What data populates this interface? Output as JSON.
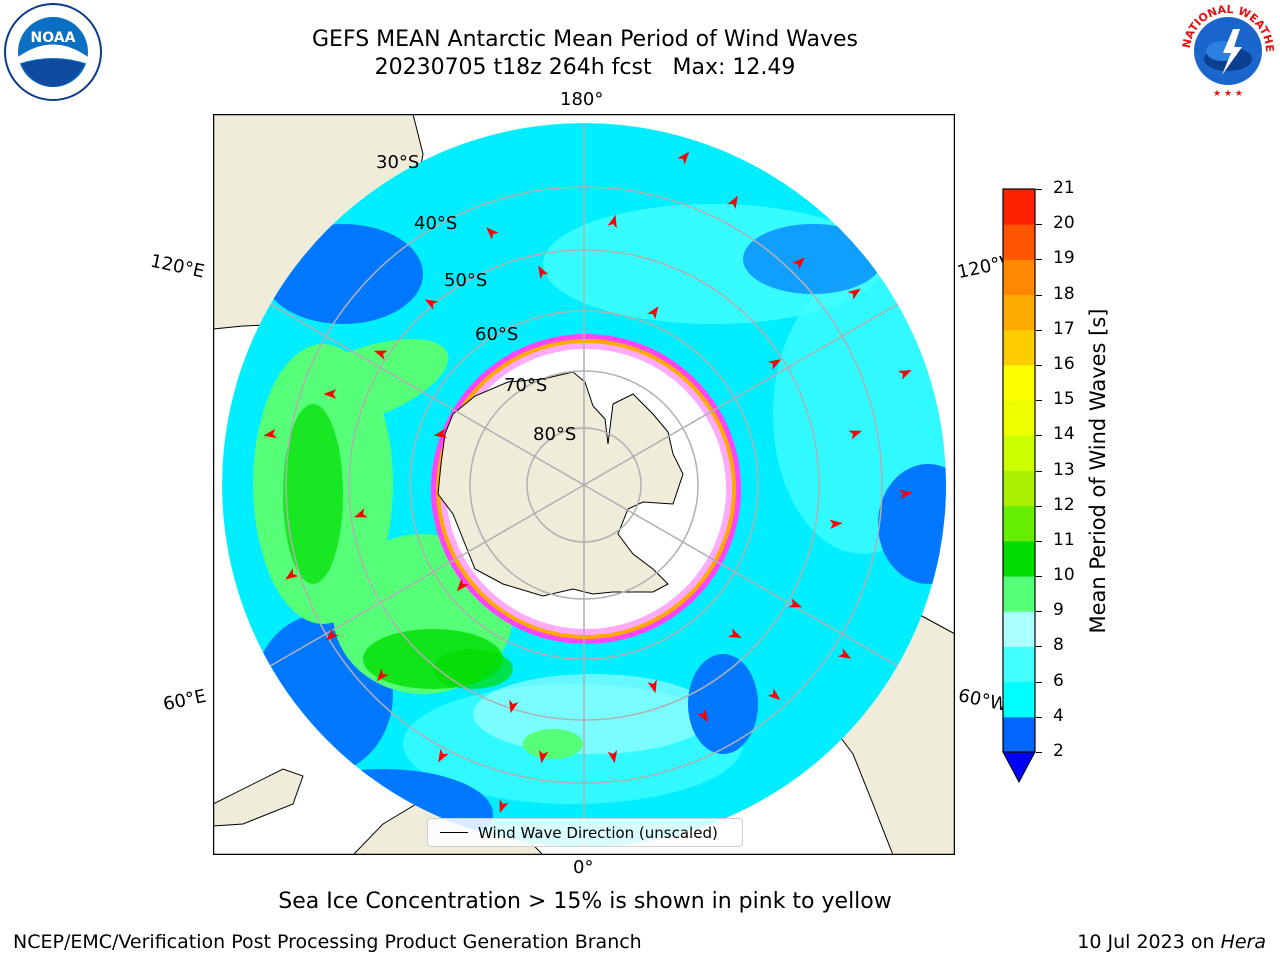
{
  "title": {
    "line1": "GEFS MEAN Antarctic Mean Period of Wind Waves",
    "line2": "20230705 t18z 264h fcst   Max: 12.49"
  },
  "map": {
    "projection": "south-polar-stereographic",
    "longitude_labels": {
      "top": "180°",
      "upper_left": "120°E",
      "upper_right": "120°W",
      "lower_left": "60°E",
      "lower_right": "60°W",
      "bottom": "0°"
    },
    "latitude_labels": [
      "30°S",
      "40°S",
      "50°S",
      "60°S",
      "70°S",
      "80°S"
    ],
    "legend_label": "Wind Wave Direction (unscaled)",
    "colors": {
      "land": "#efecda",
      "ice_free_ocean": "#ffffff",
      "sea_ice_edge": [
        "#ff00ff",
        "#ffaaff",
        "#ffaa00"
      ],
      "arrow": "#ff0000",
      "graticule": "#b0b0b0"
    }
  },
  "colorbar": {
    "label": "Mean Period of Wind Waves [s]",
    "ticks": [
      "2",
      "4",
      "6",
      "8",
      "9",
      "10",
      "11",
      "12",
      "13",
      "14",
      "15",
      "16",
      "17",
      "18",
      "19",
      "20",
      "21"
    ],
    "colors": [
      "#0000ff",
      "#0066ff",
      "#00ffff",
      "#44ffff",
      "#aaffff",
      "#55ff77",
      "#00dd00",
      "#66ee00",
      "#aaee00",
      "#ccff00",
      "#eeff00",
      "#ffff00",
      "#ffcc00",
      "#ffaa00",
      "#ff8800",
      "#ff5500",
      "#ff2200",
      "#ff0000"
    ],
    "extend": "min"
  },
  "chart_data": {
    "type": "heatmap",
    "variable": "Mean Period of Wind Waves",
    "units": "s",
    "max_value": 12.49,
    "levels": [
      2,
      4,
      6,
      8,
      9,
      10,
      11,
      12,
      13,
      14,
      15,
      16,
      17,
      18,
      19,
      20,
      21
    ],
    "valid": "20230705 t18z 264h fcst"
  },
  "notes": {
    "sea_ice": "Sea Ice Concentration > 15% is shown in pink to yellow"
  },
  "footer": {
    "left": "NCEP/EMC/Verification Post Processing Product Generation Branch",
    "right_prefix": "10 Jul 2023 on ",
    "right_host": "Hera"
  },
  "logos": {
    "left": {
      "icon": "noaa-logo",
      "text": "NOAA"
    },
    "right": {
      "icon": "nws-logo",
      "text": "NATIONAL WEATHER SERVICE"
    }
  }
}
